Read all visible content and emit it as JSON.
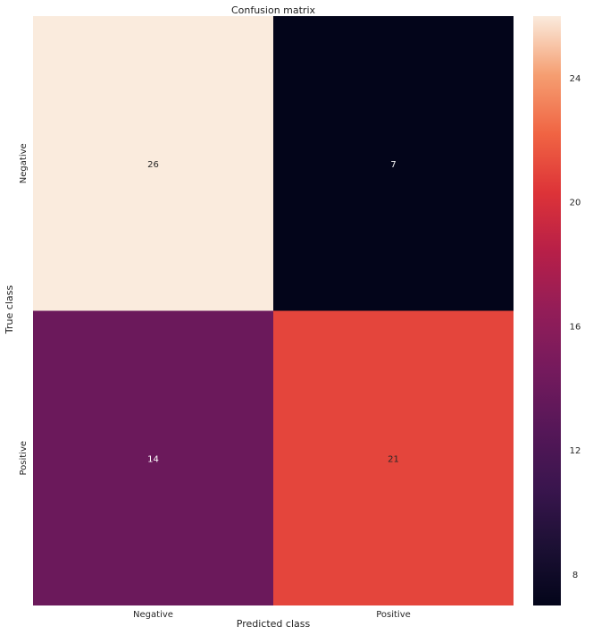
{
  "chart_data": {
    "type": "heatmap",
    "title": "Confusion matrix",
    "xlabel": "Predicted class",
    "ylabel": "True class",
    "x_categories": [
      "Negative",
      "Positive"
    ],
    "y_categories": [
      "Negative",
      "Positive"
    ],
    "values": [
      [
        26,
        7
      ],
      [
        14,
        21
      ]
    ],
    "colorbar": {
      "range": [
        7,
        26
      ],
      "ticks": [
        8,
        12,
        16,
        20,
        24
      ],
      "tick_labels": [
        "8",
        "12",
        "16",
        "20",
        "24"
      ],
      "colormap": "rocket"
    }
  }
}
